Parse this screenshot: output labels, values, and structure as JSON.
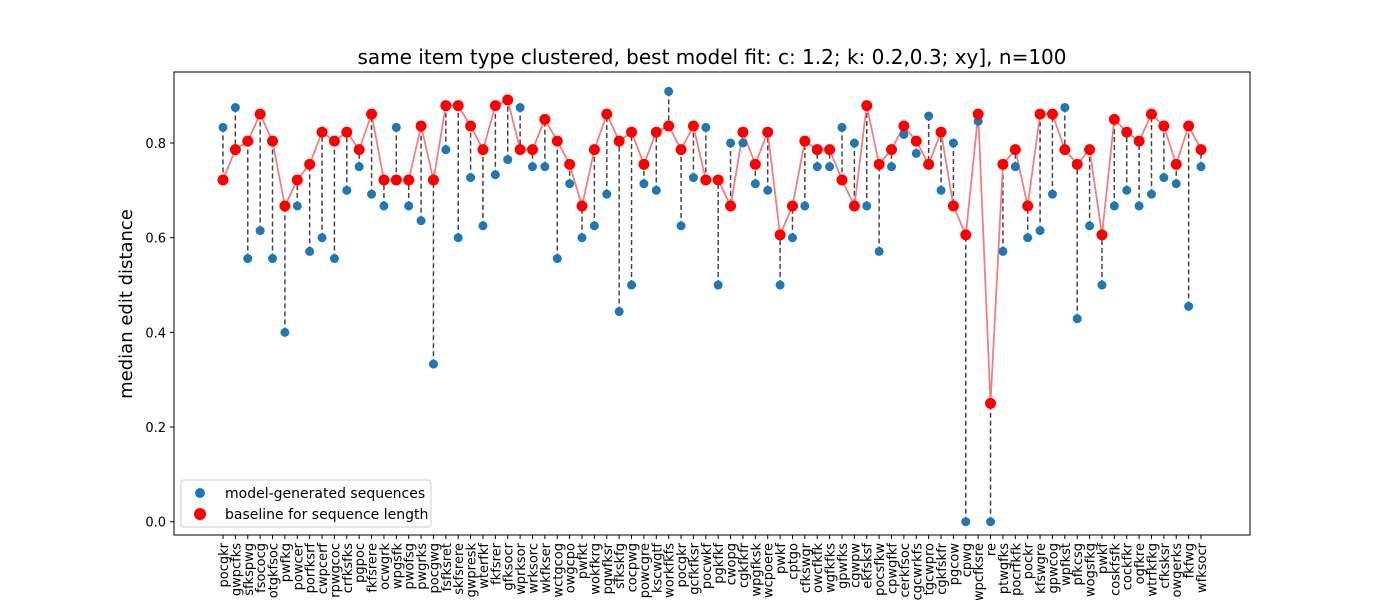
{
  "chart_data": {
    "type": "scatter",
    "title": "same item type clustered, best model fit: c: 1.2; k: 0.2,0.3; xy], n=100",
    "xlabel": "",
    "ylabel": "median edit distance",
    "ylim": [
      -0.028,
      0.95
    ],
    "yticks": [
      0.0,
      0.2,
      0.4,
      0.6,
      0.8
    ],
    "ytick_labels": [
      "0.0",
      "0.2",
      "0.4",
      "0.6",
      "0.8"
    ],
    "legend_position": "lower-left",
    "grid": false,
    "categories": [
      "pocgkr",
      "gwpcfks",
      "sfkspwg",
      "fsococg",
      "otgkfsoc",
      "pwfkg",
      "powcer",
      "porfksrf",
      "cwpcerf",
      "rpwgcoc",
      "crfksfks",
      "pgpoc",
      "fkfsrere",
      "ocwgrk",
      "wpgsfk",
      "pwofsg",
      "pwgrks",
      "pocgwg",
      "fsfksret",
      "skfsrere",
      "gwpresk",
      "wterfkf",
      "fkfsrer",
      "gfksocr",
      "wprksor",
      "wrksorc",
      "wkfkser",
      "wctgcog",
      "owgcpo",
      "pwfkt",
      "wokfkrg",
      "pgwfksr",
      "sfkskfg",
      "cocpwg",
      "powcgre",
      "kscwgtf",
      "workfkfs",
      "pocgkr",
      "gcfkfksr",
      "pocwkf",
      "pgkfkf",
      "cwopg",
      "cgkfkfr",
      "wpgfksk",
      "wcpoere",
      "pwkf",
      "cptgo",
      "cfkswgr",
      "owcfkfk",
      "wgfkfks",
      "gpwfks",
      "cgwpw",
      "ekfsksf",
      "pocsfkw",
      "cpwgfkf",
      "cerkfsoc",
      "cgcwrkfs",
      "tgcwpro",
      "cgkfskfr",
      "pgcow",
      "cpwg",
      "wpcfksre",
      "re",
      "ptwgfks",
      "pocrfkfk",
      "pockr",
      "kfswgre",
      "gpwcog",
      "wpfkst",
      "pfkcsg",
      "wogsfkg",
      "pwkf",
      "coskfsfk",
      "cockfkr",
      "ogfkre",
      "wtrfkfkg",
      "cfksksr",
      "owgerks",
      "fkfwg",
      "wfksocr"
    ],
    "series": [
      {
        "name": "model-generated sequences",
        "color": "#1f77b4",
        "values": [
          0.833,
          0.875,
          0.556,
          0.615,
          0.556,
          0.4,
          0.667,
          0.571,
          0.6,
          0.556,
          0.7,
          0.75,
          0.692,
          0.667,
          0.833,
          0.667,
          0.636,
          0.333,
          0.786,
          0.6,
          0.727,
          0.625,
          0.733,
          0.765,
          0.875,
          0.75,
          0.75,
          0.556,
          0.714,
          0.6,
          0.625,
          0.692,
          0.444,
          0.5,
          0.714,
          0.7,
          0.909,
          0.625,
          0.727,
          0.833,
          0.5,
          0.8,
          0.8,
          0.714,
          0.7,
          0.5,
          0.6,
          0.667,
          0.75,
          0.75,
          0.833,
          0.8,
          0.667,
          0.571,
          0.75,
          0.818,
          0.778,
          0.857,
          0.7,
          0.8,
          0.0,
          0.846,
          0.0,
          0.571,
          0.75,
          0.6,
          0.615,
          0.692,
          0.875,
          0.429,
          0.625,
          0.5,
          0.667,
          0.7,
          0.667,
          0.692,
          0.727,
          0.714,
          0.455,
          0.75
        ]
      },
      {
        "name": "baseline for sequence length",
        "color": "#ff0000",
        "line_color": "#f08080",
        "values": [
          0.722,
          0.786,
          0.804,
          0.861,
          0.804,
          0.667,
          0.722,
          0.755,
          0.823,
          0.804,
          0.823,
          0.786,
          0.861,
          0.722,
          0.722,
          0.722,
          0.836,
          0.722,
          0.879,
          0.879,
          0.836,
          0.786,
          0.879,
          0.891,
          0.786,
          0.786,
          0.85,
          0.804,
          0.755,
          0.667,
          0.786,
          0.861,
          0.804,
          0.823,
          0.755,
          0.823,
          0.836,
          0.786,
          0.836,
          0.722,
          0.722,
          0.667,
          0.823,
          0.755,
          0.823,
          0.606,
          0.667,
          0.804,
          0.786,
          0.786,
          0.722,
          0.667,
          0.879,
          0.755,
          0.786,
          0.836,
          0.804,
          0.755,
          0.823,
          0.667,
          0.606,
          0.861,
          0.25,
          0.755,
          0.786,
          0.667,
          0.861,
          0.861,
          0.786,
          0.755,
          0.786,
          0.606,
          0.85,
          0.823,
          0.804,
          0.861,
          0.836,
          0.755,
          0.836,
          0.786
        ]
      }
    ]
  }
}
